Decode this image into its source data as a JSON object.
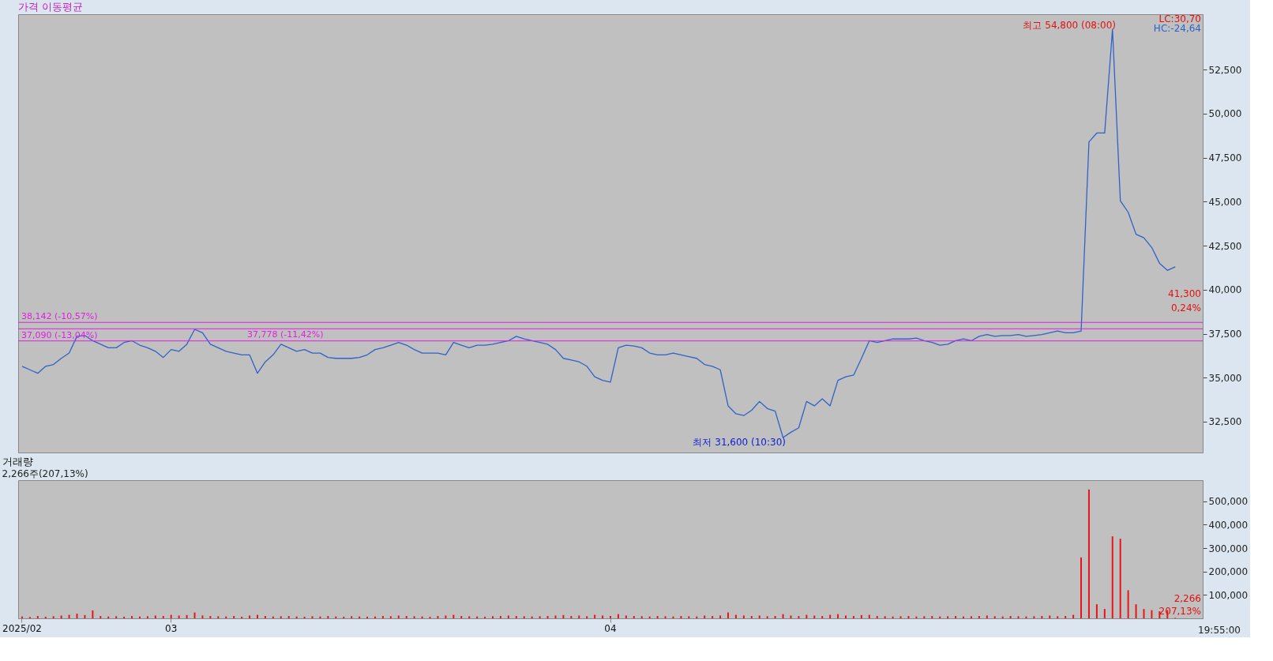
{
  "chart_data": [
    {
      "type": "line",
      "title": "가격 이동평균",
      "categories": [
        "2025/02",
        null,
        null,
        null,
        null,
        null,
        null,
        null,
        null,
        null,
        null,
        null,
        null,
        null,
        null,
        null,
        null,
        null,
        null,
        "03",
        null,
        null,
        null,
        null,
        null,
        null,
        null,
        null,
        null,
        null,
        null,
        null,
        null,
        null,
        null,
        null,
        null,
        null,
        null,
        null,
        null,
        null,
        null,
        null,
        null,
        null,
        null,
        null,
        null,
        null,
        null,
        null,
        null,
        null,
        null,
        null,
        null,
        null,
        null,
        null,
        null,
        null,
        null,
        null,
        null,
        null,
        null,
        null,
        null,
        null,
        null,
        null,
        null,
        null,
        null,
        "04",
        null,
        null,
        null,
        null,
        null,
        null,
        null,
        null,
        null,
        null,
        null,
        null,
        null,
        null,
        null,
        null,
        null,
        null,
        null,
        null,
        null,
        null,
        null,
        null,
        null,
        null,
        null,
        null,
        null,
        null,
        null,
        null,
        null,
        null,
        null,
        null,
        null,
        null,
        null,
        null,
        null,
        null,
        null,
        null,
        null,
        null,
        null,
        null,
        null,
        null,
        null,
        null,
        null,
        null,
        null,
        null,
        null,
        null,
        null,
        null,
        null,
        null,
        null,
        null,
        null,
        null,
        null,
        null,
        null,
        null,
        null,
        null,
        null,
        null,
        null
      ],
      "series": [
        {
          "color": "#2f62c8",
          "values": [
            35650,
            35450,
            35250,
            35650,
            35750,
            36100,
            36400,
            37350,
            37400,
            37100,
            36900,
            36700,
            36700,
            37000,
            37100,
            36850,
            36700,
            36500,
            36150,
            36600,
            36500,
            36900,
            37750,
            37550,
            36900,
            36700,
            36500,
            36400,
            36300,
            36300,
            35250,
            35900,
            36300,
            36900,
            36700,
            36500,
            36600,
            36400,
            36400,
            36150,
            36100,
            36100,
            36100,
            36150,
            36300,
            36600,
            36700,
            36850,
            37000,
            36850,
            36600,
            36400,
            36400,
            36400,
            36300,
            37000,
            36850,
            36700,
            36850,
            36850,
            36900,
            37000,
            37100,
            37350,
            37200,
            37100,
            37000,
            36900,
            36600,
            36100,
            36000,
            35900,
            35650,
            35050,
            34850,
            34750,
            36700,
            36850,
            36800,
            36700,
            36400,
            36300,
            36300,
            36400,
            36300,
            36200,
            36100,
            35750,
            35650,
            35450,
            33400,
            32950,
            32850,
            33150,
            33650,
            33250,
            33100,
            31600,
            31900,
            32150,
            33650,
            33400,
            33800,
            33400,
            34850,
            35050,
            35150,
            36100,
            37100,
            37000,
            37100,
            37200,
            37200,
            37200,
            37250,
            37100,
            37000,
            36850,
            36900,
            37100,
            37200,
            37100,
            37350,
            37450,
            37350,
            37400,
            37400,
            37450,
            37350,
            37400,
            37450,
            37550,
            37650,
            37550,
            37550,
            37650,
            48400,
            48900,
            48900,
            54800,
            45050,
            44400,
            43150,
            42950,
            42400,
            41500,
            41100,
            41300,
            null,
            null,
            null
          ]
        }
      ],
      "ylim": [
        30750,
        55650
      ],
      "yticks": [
        {
          "value": 32500,
          "label": "32,500"
        },
        {
          "value": 35000,
          "label": "35,000"
        },
        {
          "value": 37500,
          "label": "37,500"
        },
        {
          "value": 40000,
          "label": "40,000"
        },
        {
          "value": 42500,
          "label": "42,500"
        },
        {
          "value": 45000,
          "label": "45,000"
        },
        {
          "value": 47500,
          "label": "47,500"
        },
        {
          "value": 50000,
          "label": "50,000"
        },
        {
          "value": 52500,
          "label": "52,500"
        }
      ],
      "tick_labels": "y",
      "grid": false,
      "ref_lines": [
        {
          "axis": "y",
          "value": 38142,
          "label": "38,142 (-10,57%)",
          "color": "#e020e0"
        },
        {
          "axis": "y",
          "value": 37778,
          "label": "37,778 (-11,42%)",
          "color": "#e020e0"
        },
        {
          "axis": "y",
          "value": 37090,
          "label": "37,090 (-13,04%)",
          "color": "#e020e0"
        }
      ],
      "annotations": [
        "최고 54,800 (08:00)",
        "최저 31,600 (10:30)",
        "41,300",
        "0,24%",
        "LC:30,70",
        "HC:-24,64"
      ]
    },
    {
      "type": "bar",
      "title": "거래량",
      "subtitle": "2,266주(207,13%)",
      "categories": [
        "2025/02",
        null,
        null,
        null,
        null,
        null,
        null,
        null,
        null,
        null,
        null,
        null,
        null,
        null,
        null,
        null,
        null,
        null,
        null,
        "03",
        null,
        null,
        null,
        null,
        null,
        null,
        null,
        null,
        null,
        null,
        null,
        null,
        null,
        null,
        null,
        null,
        null,
        null,
        null,
        null,
        null,
        null,
        null,
        null,
        null,
        null,
        null,
        null,
        null,
        null,
        null,
        null,
        null,
        null,
        null,
        null,
        null,
        null,
        null,
        null,
        null,
        null,
        null,
        null,
        null,
        null,
        null,
        null,
        null,
        null,
        null,
        null,
        null,
        null,
        null,
        "04",
        null,
        null,
        null,
        null,
        null,
        null,
        null,
        null,
        null,
        null,
        null,
        null,
        null,
        null,
        null,
        null,
        null,
        null,
        null,
        null,
        null,
        null,
        null,
        null,
        null,
        null,
        null,
        null,
        null,
        null,
        null,
        null,
        null,
        null,
        null,
        null,
        null,
        null,
        null,
        null,
        null,
        null,
        null,
        null,
        null,
        null,
        null,
        null,
        null,
        null,
        null,
        null,
        null,
        null,
        null,
        null,
        null,
        null,
        null,
        null,
        null,
        null,
        null,
        null,
        null,
        null,
        null,
        null,
        null,
        null,
        null,
        null,
        null,
        null,
        null
      ],
      "series": [
        {
          "color": "#e8141c",
          "values": [
            8000,
            6000,
            10000,
            7000,
            9000,
            12000,
            15000,
            20000,
            14000,
            34000,
            10000,
            8000,
            9000,
            7000,
            10000,
            8000,
            9000,
            12000,
            10000,
            15000,
            12000,
            14000,
            25000,
            12000,
            10000,
            9000,
            8000,
            10000,
            7000,
            12000,
            15000,
            10000,
            8000,
            9000,
            10000,
            8000,
            7000,
            9000,
            8000,
            10000,
            8000,
            7000,
            9000,
            8000,
            7000,
            8000,
            10000,
            9000,
            12000,
            10000,
            9000,
            8000,
            7000,
            10000,
            12000,
            15000,
            10000,
            9000,
            8000,
            7000,
            9000,
            10000,
            12000,
            10000,
            9000,
            8000,
            9000,
            10000,
            12000,
            14000,
            10000,
            12000,
            9000,
            15000,
            12000,
            10000,
            18000,
            12000,
            10000,
            9000,
            8000,
            10000,
            9000,
            8000,
            10000,
            9000,
            8000,
            12000,
            10000,
            12000,
            25000,
            15000,
            12000,
            10000,
            12000,
            9000,
            10000,
            18000,
            12000,
            10000,
            15000,
            12000,
            10000,
            15000,
            18000,
            12000,
            10000,
            14000,
            15000,
            10000,
            9000,
            8000,
            9000,
            10000,
            8000,
            9000,
            10000,
            8000,
            9000,
            10000,
            8000,
            9000,
            10000,
            12000,
            9000,
            8000,
            10000,
            9000,
            8000,
            9000,
            10000,
            12000,
            9000,
            10000,
            15000,
            260000,
            550000,
            60000,
            40000,
            350000,
            340000,
            120000,
            60000,
            40000,
            35000,
            30000,
            35000,
            2266,
            null,
            null,
            null
          ]
        }
      ],
      "ylim": [
        0,
        590000
      ],
      "yticks": [
        {
          "value": 100000,
          "label": "100,000"
        },
        {
          "value": 200000,
          "label": "200,000"
        },
        {
          "value": 300000,
          "label": "300,000"
        },
        {
          "value": 400000,
          "label": "400,000"
        },
        {
          "value": 500000,
          "label": "500,000"
        }
      ],
      "grid": false,
      "annotations": [
        "2,266",
        "207,13%",
        "19:55:00"
      ]
    }
  ]
}
